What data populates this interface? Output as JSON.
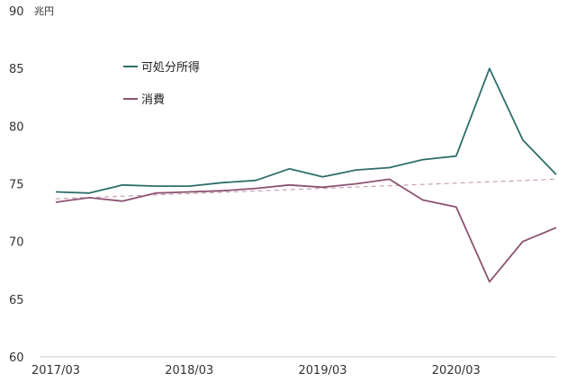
{
  "chart_data": {
    "type": "line",
    "unit": "兆円",
    "ylim": [
      60,
      90
    ],
    "yticks": [
      60,
      65,
      70,
      75,
      80,
      85,
      90
    ],
    "xtick_labels": [
      "2017/03",
      "2018/03",
      "2019/03",
      "2020/03"
    ],
    "x": [
      "2017/03",
      "2017/06",
      "2017/09",
      "2017/12",
      "2018/03",
      "2018/06",
      "2018/09",
      "2018/12",
      "2019/03",
      "2019/06",
      "2019/09",
      "2019/12",
      "2020/03",
      "2020/06",
      "2020/09",
      "2020/12"
    ],
    "series": [
      {
        "name": "可処分所得",
        "color": "#2e6e6a",
        "values": [
          74.3,
          74.2,
          74.9,
          74.8,
          74.8,
          75.1,
          75.3,
          76.3,
          75.6,
          76.2,
          76.4,
          77.1,
          77.4,
          85.0,
          78.8,
          75.8
        ]
      },
      {
        "name": "消費",
        "color": "#8b5370",
        "values": [
          73.4,
          73.8,
          73.5,
          74.2,
          74.3,
          74.4,
          74.6,
          74.9,
          74.7,
          75.0,
          75.4,
          73.6,
          73.0,
          66.5,
          70.0,
          71.2
        ]
      }
    ],
    "trend": {
      "color": "#c9a0b2",
      "style": "dashed",
      "start": 73.7,
      "end": 75.4
    },
    "legend_position": "top-left",
    "grid": false
  }
}
